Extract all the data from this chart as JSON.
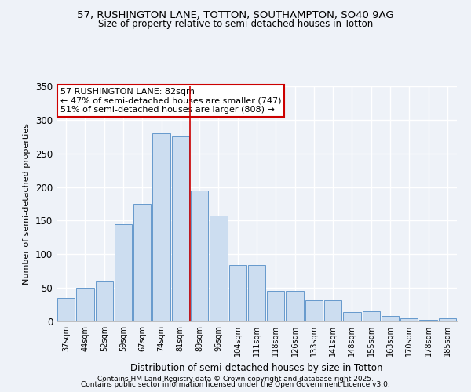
{
  "title1": "57, RUSHINGTON LANE, TOTTON, SOUTHAMPTON, SO40 9AG",
  "title2": "Size of property relative to semi-detached houses in Totton",
  "xlabel": "Distribution of semi-detached houses by size in Totton",
  "ylabel": "Number of semi-detached properties",
  "categories": [
    "37sqm",
    "44sqm",
    "52sqm",
    "59sqm",
    "67sqm",
    "74sqm",
    "81sqm",
    "89sqm",
    "96sqm",
    "104sqm",
    "111sqm",
    "118sqm",
    "126sqm",
    "133sqm",
    "141sqm",
    "148sqm",
    "155sqm",
    "163sqm",
    "170sqm",
    "178sqm",
    "185sqm"
  ],
  "values": [
    35,
    50,
    60,
    145,
    175,
    280,
    275,
    195,
    157,
    84,
    84,
    45,
    45,
    32,
    32,
    14,
    15,
    8,
    5,
    2,
    5
  ],
  "bar_color": "#ccddf0",
  "bar_edge_color": "#6699cc",
  "property_bin_index": 6,
  "annotation_title": "57 RUSHINGTON LANE: 82sqm",
  "annotation_line1": "← 47% of semi-detached houses are smaller (747)",
  "annotation_line2": "51% of semi-detached houses are larger (808) →",
  "vline_color": "#cc0000",
  "annotation_box_color": "#cc0000",
  "background_color": "#eef2f8",
  "grid_color": "#ffffff",
  "ylim": [
    0,
    350
  ],
  "yticks": [
    0,
    50,
    100,
    150,
    200,
    250,
    300,
    350
  ],
  "footer1": "Contains HM Land Registry data © Crown copyright and database right 2025.",
  "footer2": "Contains public sector information licensed under the Open Government Licence v3.0."
}
